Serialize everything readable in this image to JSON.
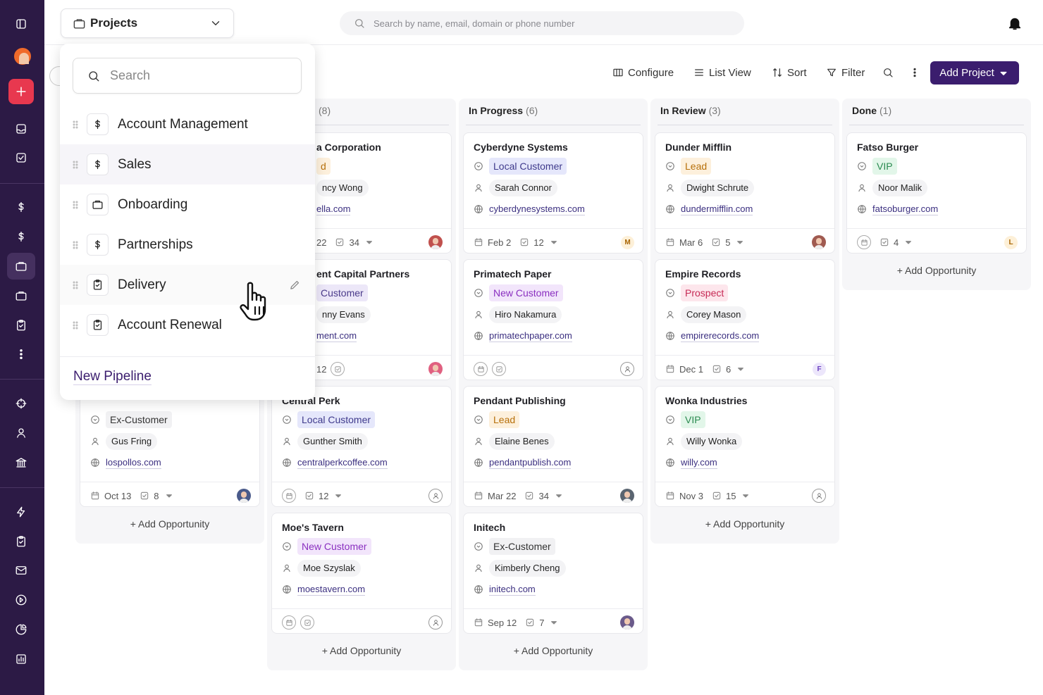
{
  "header": {
    "project_selector": "Projects",
    "search_placeholder": "Search by name, email, domain or phone number"
  },
  "toolbar": {
    "items": [
      "Configure",
      "List View",
      "Sort",
      "Filter"
    ],
    "add_button": "Add Project"
  },
  "dropdown": {
    "search_placeholder": "Search",
    "items": [
      "Account Management",
      "Sales",
      "Onboarding",
      "Partnerships",
      "Delivery",
      "Account Renewal"
    ],
    "new_pipeline": "New Pipeline"
  },
  "columns": [
    {
      "add": "+ Add Opportunity",
      "cards": [
        {
          "tag": "Ex-Customer",
          "tag_bg": "#f1f1f3",
          "tag_fg": "#333333",
          "person": "Gus Fring",
          "domain": "lospollos.com",
          "date": "Oct 13",
          "tasks": 8,
          "avatar_color": "#4a5a8a"
        }
      ]
    },
    {
      "count": "(8)",
      "add": "+ Add Opportunity",
      "cards": [
        {
          "title": "a Corporation",
          "tag": "d",
          "tag_bg": "#fdf0dc",
          "tag_fg": "#b7700a",
          "person": "ncy Wong",
          "domain": "ella.com",
          "date": "22",
          "tasks": 34,
          "avatar_color": "#c0504d"
        },
        {
          "title": "ent Capital Partners",
          "tag": "Customer",
          "tag_bg": "#ece7f8",
          "tag_fg": "#4a3a8a",
          "person": "nny Evans",
          "domain": "ment.com",
          "date": "12",
          "avatar_color": "#e06080"
        },
        {
          "title": "Central Perk",
          "tag": "Local Customer",
          "tag_bg": "#e5e7fb",
          "tag_fg": "#3f3a8c",
          "person": "Gunther Smith",
          "domain": "centralperkcoffee.com",
          "tasks": 12
        },
        {
          "title": "Moe's Tavern",
          "tag": "New Customer",
          "tag_bg": "#f2e5fb",
          "tag_fg": "#8a2fc0",
          "person": "Moe Szyslak",
          "domain": "moestavern.com"
        }
      ]
    },
    {
      "title": "In Progress",
      "count": "(6)",
      "add": "+ Add Opportunity",
      "cards": [
        {
          "title": "Cyberdyne Systems",
          "tag": "Local Customer",
          "tag_bg": "#e5e7fb",
          "tag_fg": "#3f3a8c",
          "person": "Sarah Connor",
          "domain": "cyberdynesystems.com",
          "date": "Feb 2",
          "tasks": 12,
          "avatar": "M",
          "avatar_color": "#fdf0d8",
          "avatar_text_color": "#a86400"
        },
        {
          "title": "Primatech Paper",
          "tag": "New Customer",
          "tag_bg": "#f2e5fb",
          "tag_fg": "#8a2fc0",
          "person": "Hiro Nakamura",
          "domain": "primatechpaper.com"
        },
        {
          "title": "Pendant Publishing",
          "tag": "Lead",
          "tag_bg": "#fdf0dc",
          "tag_fg": "#b7700a",
          "person": "Elaine Benes",
          "domain": "pendantpublish.com",
          "date": "Mar 22",
          "tasks": 34,
          "avatar_color": "#5a6470"
        },
        {
          "title": "Initech",
          "tag": "Ex-Customer",
          "tag_bg": "#f1f1f3",
          "tag_fg": "#333333",
          "person": "Kimberly Cheng",
          "domain": "initech.com",
          "date": "Sep 12",
          "tasks": 7,
          "avatar_color": "#6a5a8a"
        }
      ]
    },
    {
      "title": "In Review",
      "count": "(3)",
      "add": "+ Add Opportunity",
      "cards": [
        {
          "title": "Dunder Mifflin",
          "tag": "Lead",
          "tag_bg": "#fdf0dc",
          "tag_fg": "#b7700a",
          "person": "Dwight Schrute",
          "domain": "dundermifflin.com",
          "date": "Mar 6",
          "tasks": 5,
          "avatar_color": "#a05a50"
        },
        {
          "title": "Empire Records",
          "tag": "Prospect",
          "tag_bg": "#fde6ec",
          "tag_fg": "#c62a55",
          "person": "Corey Mason",
          "domain": "empirerecords.com",
          "date": "Dec 1",
          "tasks": 6,
          "avatar": "F",
          "avatar_color": "#ece6fb",
          "avatar_text_color": "#6a3fc0"
        },
        {
          "title": "Wonka Industries",
          "tag": "VIP",
          "tag_bg": "#e2f6e9",
          "tag_fg": "#2a8a50",
          "person": "Willy Wonka",
          "domain": "willy.com",
          "date": "Nov 3",
          "tasks": 15
        }
      ]
    },
    {
      "title": "Done",
      "count": "(1)",
      "add": "+ Add Opportunity",
      "cards": [
        {
          "title": "Fatso Burger",
          "tag": "VIP",
          "tag_bg": "#e2f6e9",
          "tag_fg": "#2a8a50",
          "person": "Noor Malik",
          "domain": "fatsoburger.com",
          "tasks": 4,
          "avatar": "L",
          "avatar_color": "#fdf0d8",
          "avatar_text_color": "#a86400"
        }
      ]
    }
  ]
}
